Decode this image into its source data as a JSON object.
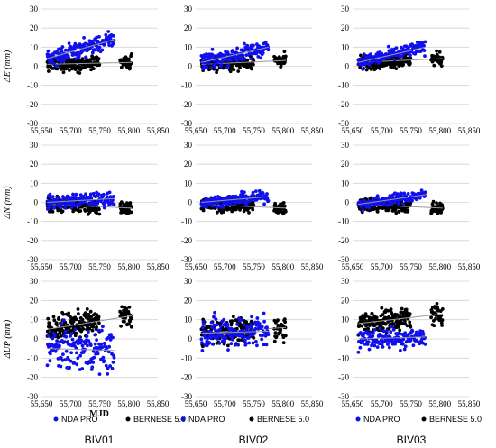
{
  "figure": {
    "column_titles": [
      "BIV01",
      "BIV02",
      "BIV03"
    ],
    "row_ylabels": [
      "ΔE (mm)",
      "ΔN (mm)",
      "ΔUP (mm)"
    ],
    "xlabel": "MJD",
    "legend": [
      "NDA PRO",
      "BERNESE 5.0"
    ],
    "colors": {
      "nda": "#1010ee",
      "bernese": "#000000",
      "trend": "#999999"
    }
  },
  "chart_data": {
    "type": "scatter",
    "xlim": [
      55650,
      55850
    ],
    "xticks": [
      55650,
      55700,
      55750,
      55800,
      55850
    ],
    "xtick_labels": [
      "55,650",
      "55,700",
      "55,750",
      "55,800",
      "55,850"
    ],
    "ylim": [
      -30,
      30
    ],
    "yticks": [
      -30,
      -20,
      -10,
      0,
      10,
      20,
      30
    ],
    "grid": "horizontal",
    "legend_position": "bottom",
    "series": [
      "NDA PRO",
      "BERNESE 5.0"
    ],
    "nda_x_range": [
      55660,
      55775
    ],
    "bernese_x_ranges": [
      [
        55660,
        55750
      ],
      [
        55785,
        55805
      ]
    ],
    "panels": [
      {
        "site": "BIV01",
        "component": "ΔE",
        "nda": {
          "trend": [
            [
              55660,
              4
            ],
            [
              55775,
              14
            ]
          ],
          "spread": 3
        },
        "bernese": {
          "trend": [
            [
              55660,
              1
            ],
            [
              55805,
              2
            ]
          ],
          "spread": 2.5
        }
      },
      {
        "site": "BIV02",
        "component": "ΔE",
        "nda": {
          "trend": [
            [
              55660,
              2
            ],
            [
              55775,
              10
            ]
          ],
          "spread": 3
        },
        "bernese": {
          "trend": [
            [
              55660,
              1
            ],
            [
              55805,
              3
            ]
          ],
          "spread": 2.5
        }
      },
      {
        "site": "BIV03",
        "component": "ΔE",
        "nda": {
          "trend": [
            [
              55660,
              2
            ],
            [
              55775,
              10
            ]
          ],
          "spread": 2.5
        },
        "bernese": {
          "trend": [
            [
              55660,
              2
            ],
            [
              55805,
              4
            ]
          ],
          "spread": 2.5
        }
      },
      {
        "site": "BIV01",
        "component": "ΔN",
        "nda": {
          "trend": [
            [
              55660,
              0
            ],
            [
              55775,
              2
            ]
          ],
          "spread": 2.5
        },
        "bernese": {
          "trend": [
            [
              55660,
              -1
            ],
            [
              55805,
              -3
            ]
          ],
          "spread": 2.5
        }
      },
      {
        "site": "BIV02",
        "component": "ΔN",
        "nda": {
          "trend": [
            [
              55660,
              0
            ],
            [
              55775,
              3
            ]
          ],
          "spread": 2
        },
        "bernese": {
          "trend": [
            [
              55660,
              -1
            ],
            [
              55805,
              -3
            ]
          ],
          "spread": 2.5
        }
      },
      {
        "site": "BIV03",
        "component": "ΔN",
        "nda": {
          "trend": [
            [
              55660,
              -1
            ],
            [
              55775,
              4
            ]
          ],
          "spread": 2
        },
        "bernese": {
          "trend": [
            [
              55660,
              -1
            ],
            [
              55805,
              -3
            ]
          ],
          "spread": 2.5
        }
      },
      {
        "site": "BIV01",
        "component": "ΔUP",
        "nda": {
          "trend": [
            [
              55660,
              -5
            ],
            [
              55775,
              -6
            ]
          ],
          "spread": 8
        },
        "bernese": {
          "trend": [
            [
              55660,
              5
            ],
            [
              55805,
              12
            ]
          ],
          "spread": 4.5
        }
      },
      {
        "site": "BIV02",
        "component": "ΔUP",
        "nda": {
          "trend": [
            [
              55660,
              3
            ],
            [
              55775,
              4
            ]
          ],
          "spread": 6
        },
        "bernese": {
          "trend": [
            [
              55660,
              3
            ],
            [
              55805,
              6
            ]
          ],
          "spread": 4.5
        }
      },
      {
        "site": "BIV03",
        "component": "ΔUP",
        "nda": {
          "trend": [
            [
              55660,
              0
            ],
            [
              55775,
              1
            ]
          ],
          "spread": 4
        },
        "bernese": {
          "trend": [
            [
              55660,
              8
            ],
            [
              55805,
              13
            ]
          ],
          "spread": 4
        }
      }
    ]
  }
}
